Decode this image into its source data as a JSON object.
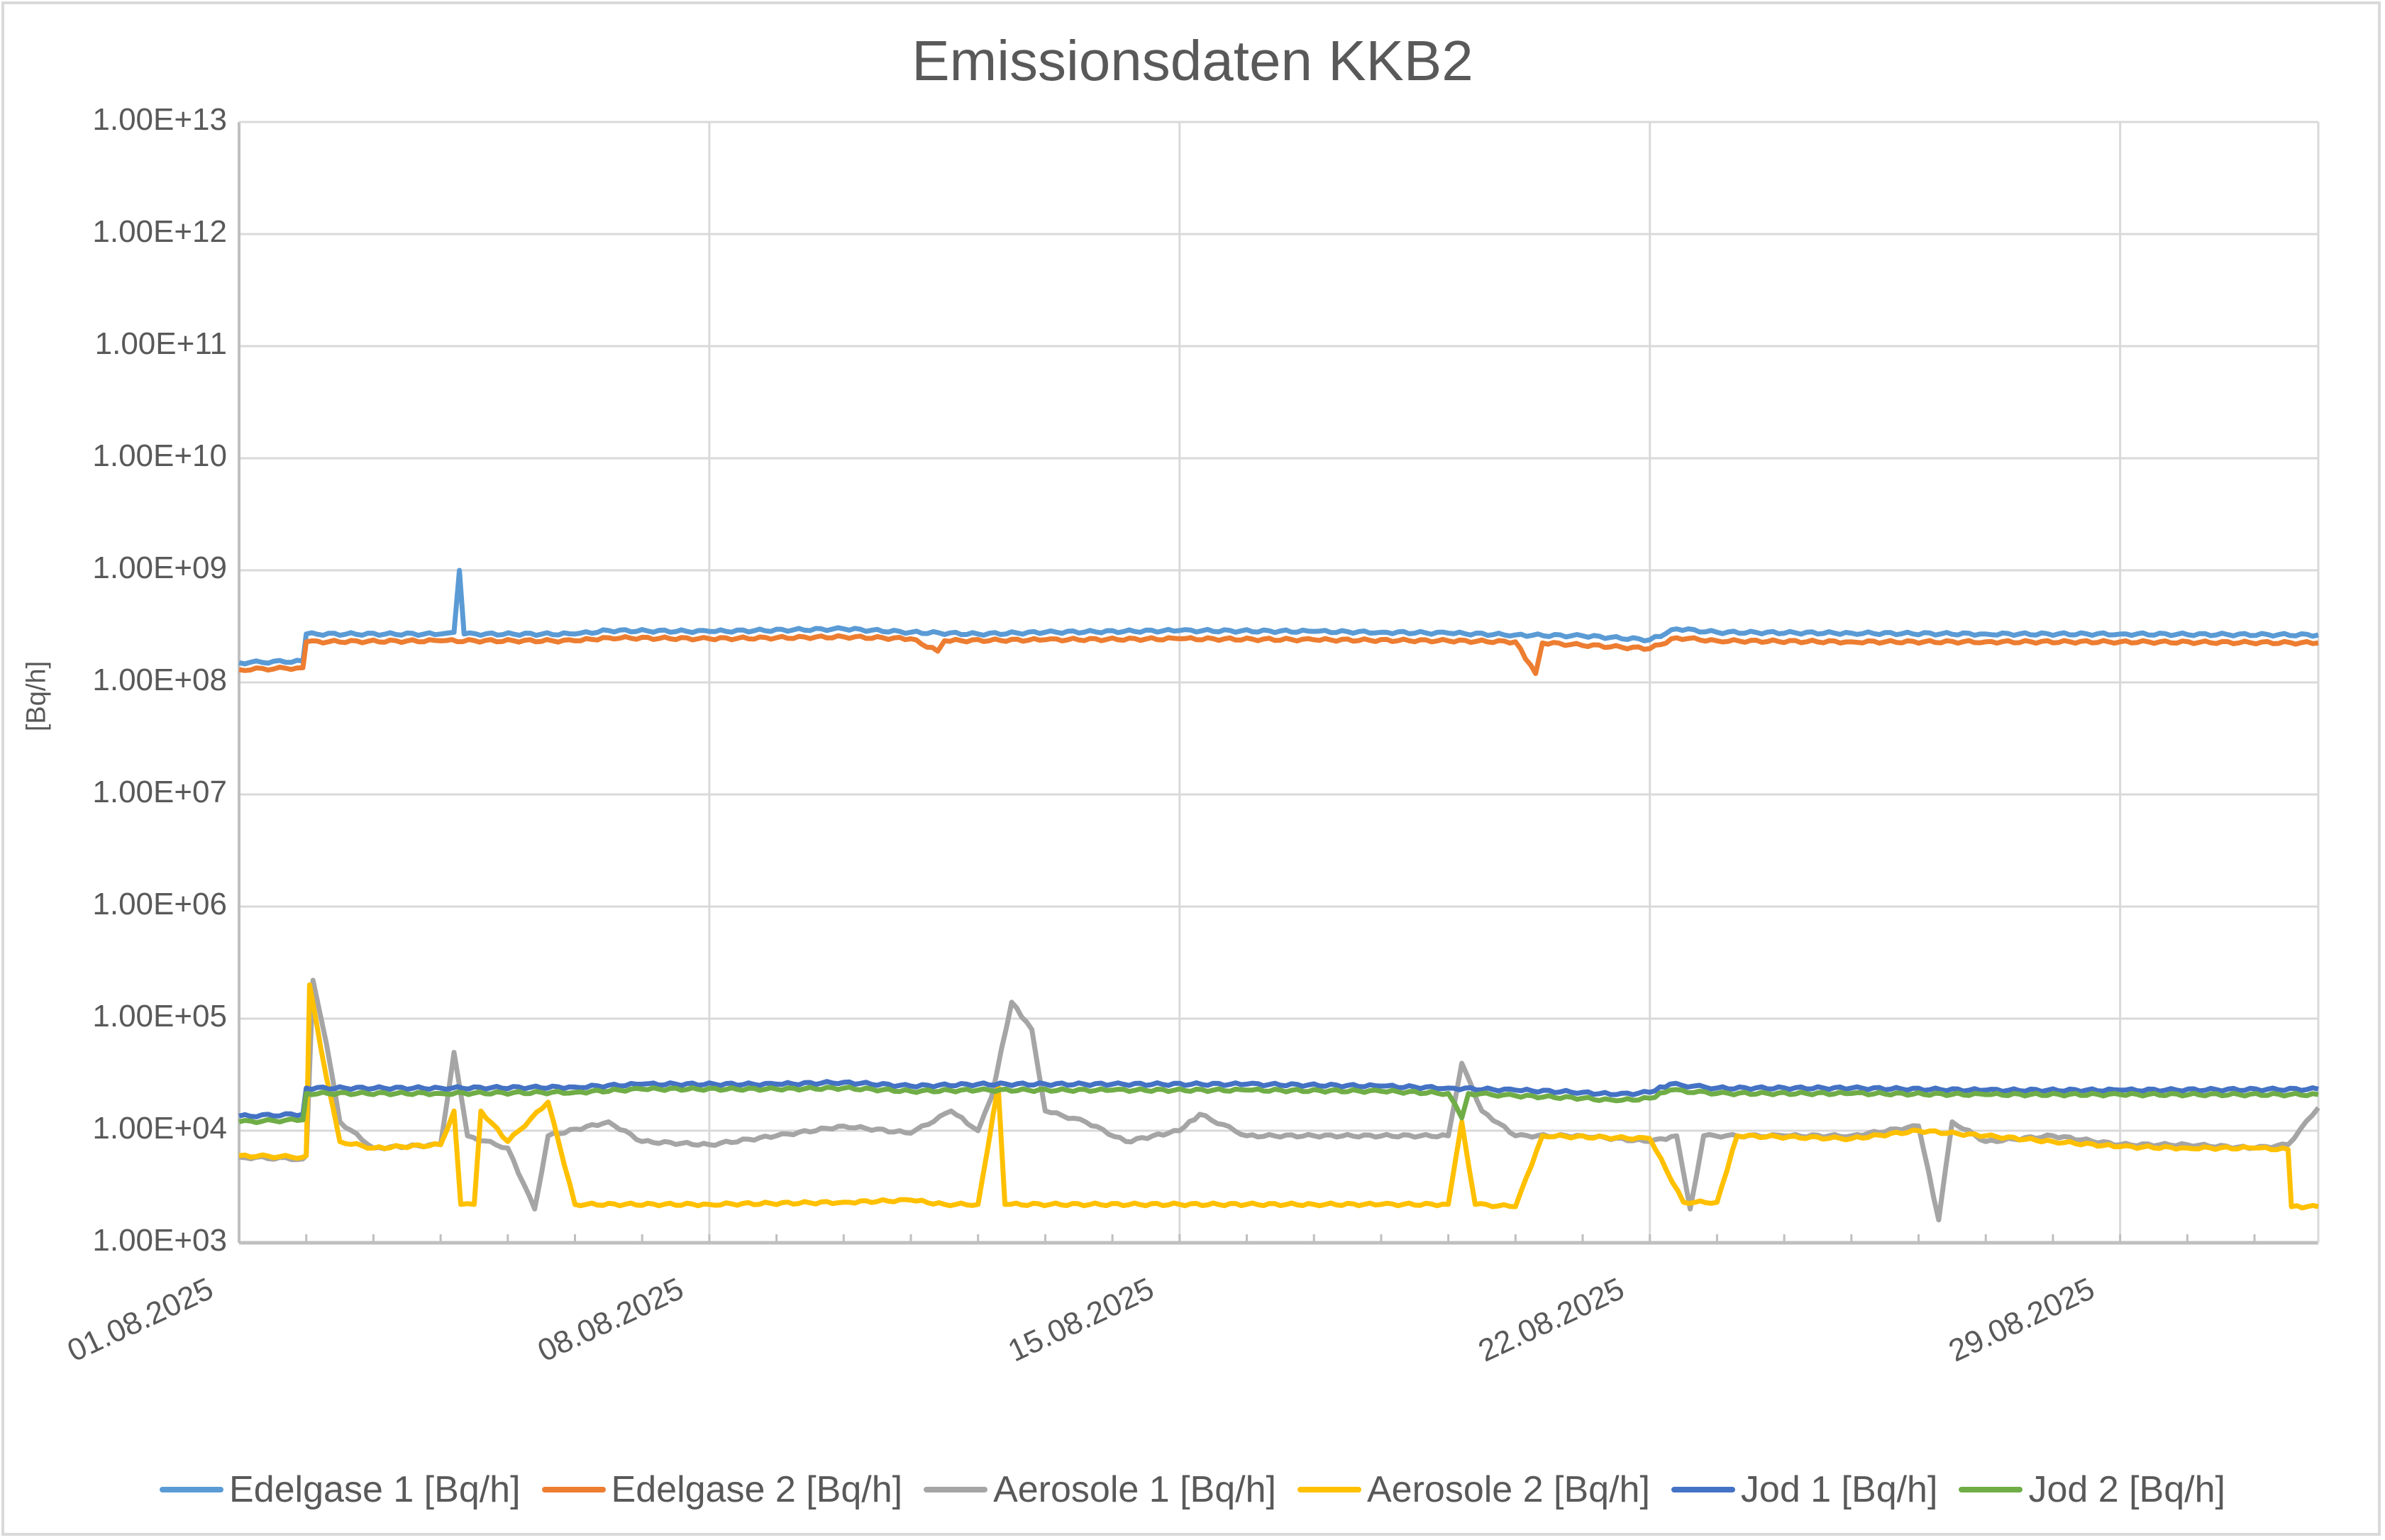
{
  "chart_data": {
    "type": "line",
    "title": "Emissionsdaten KKB2",
    "xlabel": "",
    "ylabel": "[Bq/h]",
    "yscale": "log",
    "ylim": [
      1000,
      10000000000000
    ],
    "y_ticks": [
      "1.00E+13",
      "1.00E+12",
      "1.00E+11",
      "1.00E+10",
      "1.00E+09",
      "1.00E+08",
      "1.00E+07",
      "1.00E+06",
      "1.00E+05",
      "1.00E+04",
      "1.00E+03"
    ],
    "x_ticks": [
      "01.08.2025",
      "08.08.2025",
      "15.08.2025",
      "22.08.2025",
      "29.08.2025"
    ],
    "x_range_days": [
      0,
      30.95
    ],
    "grid": {
      "horizontal": true,
      "vertical_major_weekly": true,
      "minor_ticks_daily": true
    },
    "legend_position": "bottom",
    "series": [
      {
        "name": "Edelgase 1 [Bq/h]",
        "color": "#5b9bd5",
        "points": [
          [
            0,
            150000000
          ],
          [
            0.95,
            155000000
          ],
          [
            1,
            270000000
          ],
          [
            3,
            270000000
          ],
          [
            3.2,
            280000000
          ],
          [
            3.28,
            1000000000
          ],
          [
            3.35,
            270000000
          ],
          [
            5,
            270000000
          ],
          [
            5.5,
            290000000
          ],
          [
            7,
            285000000
          ],
          [
            9,
            300000000
          ],
          [
            10,
            280000000
          ],
          [
            11,
            270000000
          ],
          [
            12,
            280000000
          ],
          [
            14,
            290000000
          ],
          [
            16,
            285000000
          ],
          [
            17,
            280000000
          ],
          [
            18,
            275000000
          ],
          [
            19,
            265000000
          ],
          [
            20,
            260000000
          ],
          [
            21,
            240000000
          ],
          [
            21.4,
            300000000
          ],
          [
            22,
            280000000
          ],
          [
            24,
            275000000
          ],
          [
            26,
            270000000
          ],
          [
            28,
            270000000
          ],
          [
            30.95,
            265000000
          ]
        ]
      },
      {
        "name": "Edelgase 2 [Bq/h]",
        "color": "#ed7d31",
        "points": [
          [
            0,
            130000000
          ],
          [
            0.95,
            135000000
          ],
          [
            1,
            230000000
          ],
          [
            3,
            235000000
          ],
          [
            5,
            235000000
          ],
          [
            5.5,
            250000000
          ],
          [
            7,
            245000000
          ],
          [
            9,
            255000000
          ],
          [
            10,
            245000000
          ],
          [
            10.4,
            190000000
          ],
          [
            10.5,
            235000000
          ],
          [
            12,
            240000000
          ],
          [
            14,
            245000000
          ],
          [
            16,
            240000000
          ],
          [
            18,
            235000000
          ],
          [
            19,
            230000000
          ],
          [
            19.3,
            120000000
          ],
          [
            19.4,
            225000000
          ],
          [
            21,
            200000000
          ],
          [
            21.4,
            250000000
          ],
          [
            22,
            235000000
          ],
          [
            24,
            230000000
          ],
          [
            26,
            230000000
          ],
          [
            28,
            230000000
          ],
          [
            30.95,
            225000000
          ]
        ]
      },
      {
        "name": "Aerosole 1 [Bq/h]",
        "color": "#a5a5a5",
        "points": [
          [
            0,
            5800
          ],
          [
            0.95,
            5600
          ],
          [
            1,
            6000
          ],
          [
            1.1,
            220000
          ],
          [
            1.3,
            60000
          ],
          [
            1.5,
            12000
          ],
          [
            2,
            7000
          ],
          [
            3,
            7500
          ],
          [
            3.2,
            50000
          ],
          [
            3.4,
            9000
          ],
          [
            4,
            7000
          ],
          [
            4.4,
            2000
          ],
          [
            4.6,
            9000
          ],
          [
            5.5,
            12000
          ],
          [
            6,
            8000
          ],
          [
            7,
            7500
          ],
          [
            8,
            9000
          ],
          [
            9,
            11000
          ],
          [
            10,
            9500
          ],
          [
            10.6,
            15000
          ],
          [
            11,
            10000
          ],
          [
            11.2,
            20000
          ],
          [
            11.5,
            140000
          ],
          [
            11.8,
            80000
          ],
          [
            12,
            15000
          ],
          [
            12.6,
            12000
          ],
          [
            13.2,
            8000
          ],
          [
            14,
            10000
          ],
          [
            14.3,
            14000
          ],
          [
            15,
            9000
          ],
          [
            16,
            9000
          ],
          [
            18,
            9000
          ],
          [
            18.2,
            40000
          ],
          [
            18.5,
            15000
          ],
          [
            19,
            9000
          ],
          [
            20,
            9000
          ],
          [
            21,
            8000
          ],
          [
            21.4,
            9000
          ],
          [
            21.6,
            2000
          ],
          [
            21.8,
            9000
          ],
          [
            23,
            9000
          ],
          [
            24,
            9000
          ],
          [
            25,
            11000
          ],
          [
            25.3,
            1600
          ],
          [
            25.5,
            12000
          ],
          [
            26,
            8000
          ],
          [
            27,
            9000
          ],
          [
            28,
            7500
          ],
          [
            29,
            7500
          ],
          [
            30,
            7000
          ],
          [
            30.5,
            7500
          ],
          [
            30.95,
            16000
          ]
        ]
      },
      {
        "name": "Aerosole 2 [Bq/h]",
        "color": "#ffc000",
        "points": [
          [
            0,
            6000
          ],
          [
            0.95,
            5800
          ],
          [
            1,
            6000
          ],
          [
            1.05,
            200000
          ],
          [
            1.3,
            30000
          ],
          [
            1.5,
            8000
          ],
          [
            2,
            7000
          ],
          [
            3,
            7500
          ],
          [
            3.2,
            15000
          ],
          [
            3.3,
            2200
          ],
          [
            3.5,
            2200
          ],
          [
            3.6,
            15000
          ],
          [
            4,
            8000
          ],
          [
            4.6,
            18000
          ],
          [
            5,
            2200
          ],
          [
            7,
            2200
          ],
          [
            9,
            2300
          ],
          [
            10,
            2400
          ],
          [
            10.5,
            2200
          ],
          [
            11,
            2200
          ],
          [
            11.3,
            25000
          ],
          [
            11.4,
            2200
          ],
          [
            14,
            2200
          ],
          [
            15,
            2200
          ],
          [
            16,
            2200
          ],
          [
            17,
            2200
          ],
          [
            18,
            2200
          ],
          [
            18.2,
            12000
          ],
          [
            18.4,
            2200
          ],
          [
            19,
            2100
          ],
          [
            19.4,
            9000
          ],
          [
            21,
            8500
          ],
          [
            21.5,
            2300
          ],
          [
            22,
            2300
          ],
          [
            22.3,
            9000
          ],
          [
            24,
            8500
          ],
          [
            25,
            10000
          ],
          [
            26,
            9000
          ],
          [
            27,
            8000
          ],
          [
            28,
            7200
          ],
          [
            29,
            7000
          ],
          [
            30,
            7000
          ],
          [
            30.5,
            6800
          ],
          [
            30.55,
            2100
          ],
          [
            30.95,
            2100
          ]
        ]
      },
      {
        "name": "Jod 1 [Bq/h]",
        "color": "#4472c4",
        "points": [
          [
            0,
            13500
          ],
          [
            0.95,
            14000
          ],
          [
            1,
            24000
          ],
          [
            3,
            24000
          ],
          [
            5,
            24500
          ],
          [
            6,
            26000
          ],
          [
            8,
            26000
          ],
          [
            9,
            27000
          ],
          [
            10,
            25000
          ],
          [
            11,
            26000
          ],
          [
            13,
            26000
          ],
          [
            15,
            26000
          ],
          [
            17,
            25000
          ],
          [
            18,
            24000
          ],
          [
            19,
            23000
          ],
          [
            20,
            22000
          ],
          [
            20.5,
            21000
          ],
          [
            21,
            22000
          ],
          [
            21.3,
            26000
          ],
          [
            22,
            24000
          ],
          [
            24,
            24000
          ],
          [
            26,
            23000
          ],
          [
            28,
            23000
          ],
          [
            30.95,
            23500
          ]
        ]
      },
      {
        "name": "Jod 2 [Bq/h]",
        "color": "#70ad47",
        "points": [
          [
            0,
            12000
          ],
          [
            0.95,
            12500
          ],
          [
            1,
            21500
          ],
          [
            3,
            21500
          ],
          [
            5,
            22000
          ],
          [
            6,
            23500
          ],
          [
            8,
            23500
          ],
          [
            9,
            24000
          ],
          [
            10,
            22500
          ],
          [
            11,
            23000
          ],
          [
            13,
            23000
          ],
          [
            15,
            23000
          ],
          [
            17,
            22500
          ],
          [
            18,
            21500
          ],
          [
            18.2,
            13000
          ],
          [
            18.3,
            21500
          ],
          [
            19,
            20500
          ],
          [
            20,
            19500
          ],
          [
            20.5,
            18500
          ],
          [
            21,
            19500
          ],
          [
            21.3,
            23000
          ],
          [
            22,
            21500
          ],
          [
            24,
            21500
          ],
          [
            26,
            21000
          ],
          [
            28,
            21000
          ],
          [
            30.95,
            21000
          ]
        ]
      }
    ]
  }
}
